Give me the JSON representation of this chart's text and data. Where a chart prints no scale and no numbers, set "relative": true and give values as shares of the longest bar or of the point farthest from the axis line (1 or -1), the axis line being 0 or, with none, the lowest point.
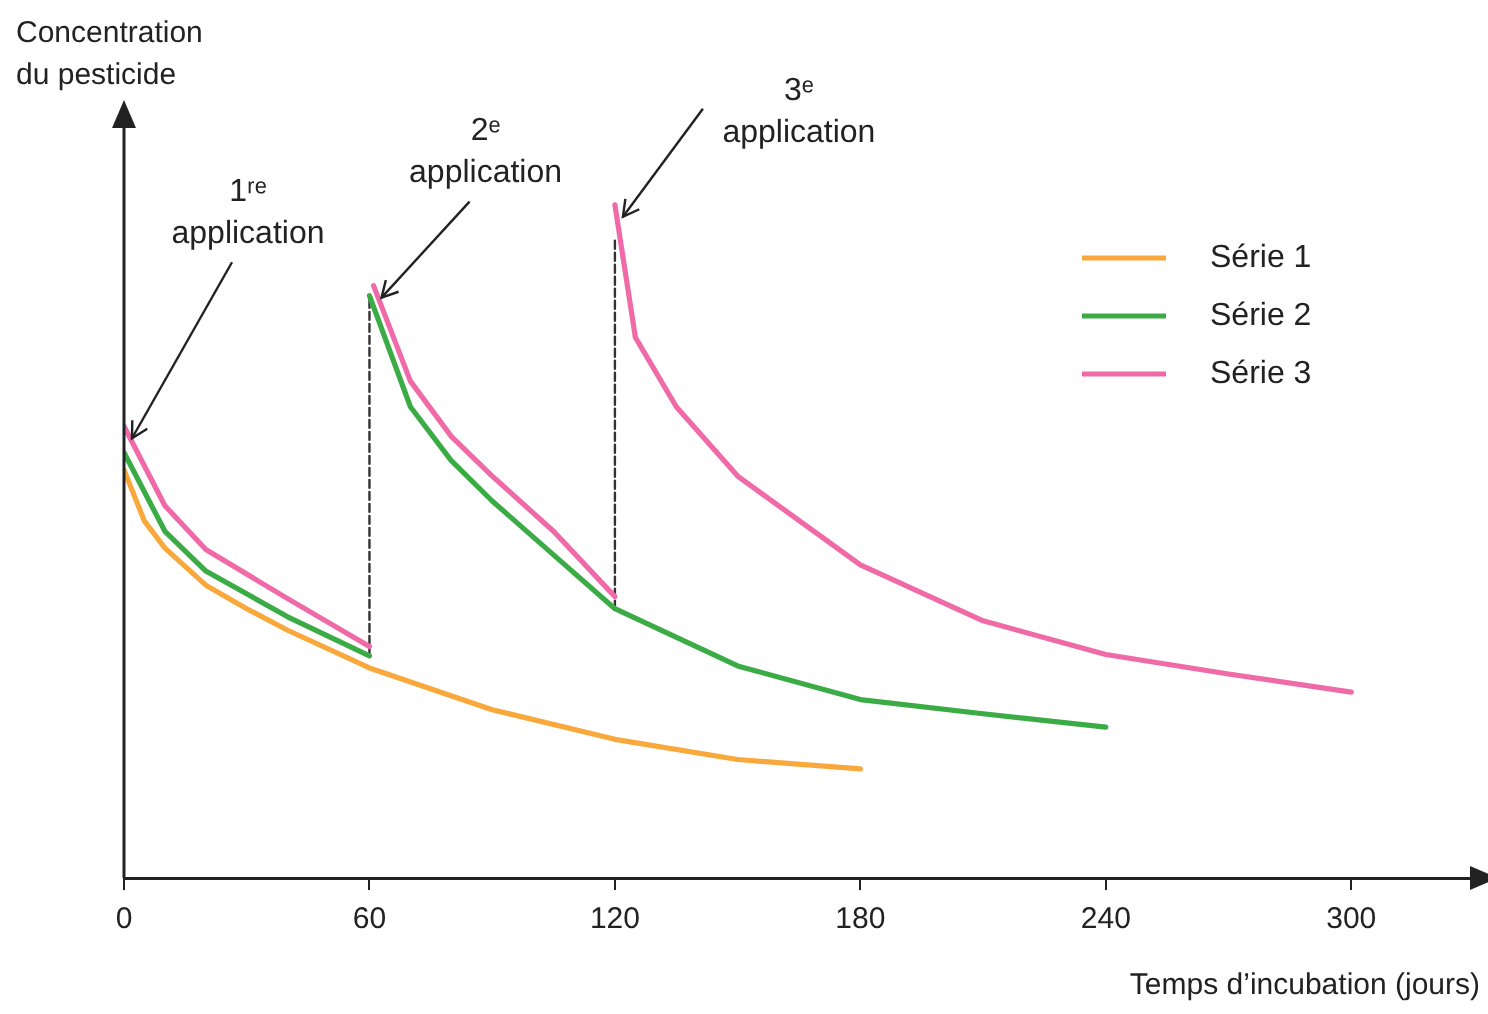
{
  "chart_data": {
    "type": "line",
    "xlabel": "Temps d’incubation (jours)",
    "ylabel": "Concentration\ndu pesticide",
    "relative": true,
    "xlim": [
      0,
      330
    ],
    "xticks": [
      0,
      60,
      120,
      180,
      240,
      300
    ],
    "grid": false,
    "legend": "top right",
    "marker": "none",
    "line_style": "solid",
    "series": [
      {
        "name": "Série 1",
        "color": "#f9a83b",
        "x": [
          0,
          5,
          10,
          20,
          30,
          40,
          60,
          90,
          120,
          150,
          180
        ],
        "values": [
          0.606,
          0.53,
          0.49,
          0.435,
          0.4,
          0.368,
          0.312,
          0.25,
          0.206,
          0.176,
          0.162
        ]
      },
      {
        "name": "Série 2",
        "color": "#3bac45",
        "x": [
          0,
          10,
          20,
          40,
          60,
          null,
          60,
          70,
          80,
          90,
          105,
          120,
          150,
          180,
          210,
          240
        ],
        "values": [
          0.632,
          0.515,
          0.456,
          0.388,
          0.33,
          null,
          0.865,
          0.7,
          0.62,
          0.56,
          0.48,
          0.4,
          0.315,
          0.265,
          0.244,
          0.224
        ]
      },
      {
        "name": "Série 3",
        "color": "#ef6aa6",
        "x": [
          0,
          10,
          20,
          40,
          60,
          null,
          61,
          70,
          80,
          90,
          105,
          120,
          null,
          120,
          125,
          135,
          150,
          180,
          210,
          240,
          270,
          300
        ],
        "values": [
          0.671,
          0.553,
          0.488,
          0.415,
          0.344,
          null,
          0.88,
          0.738,
          0.656,
          0.597,
          0.515,
          0.418,
          null,
          1.0,
          0.803,
          0.7,
          0.597,
          0.465,
          0.382,
          0.332,
          0.303,
          0.276
        ]
      },
      {
        "type": "line",
        "color": "#333333",
        "line_style": "dashed",
        "x": [
          60,
          60
        ],
        "values": [
          0.33,
          0.865
        ]
      },
      {
        "type": "line",
        "color": "#333333",
        "line_style": "dashed",
        "x": [
          120,
          120
        ],
        "values": [
          0.4,
          0.95
        ]
      }
    ],
    "annotations": [
      {
        "text": "1ʳᵉ application",
        "x": 0,
        "y": 0.671
      },
      {
        "text": "2ᵉ application",
        "x": 61,
        "y": 0.88
      },
      {
        "text": "3ᵉ application",
        "x": 120,
        "y": 1.0
      }
    ]
  }
}
